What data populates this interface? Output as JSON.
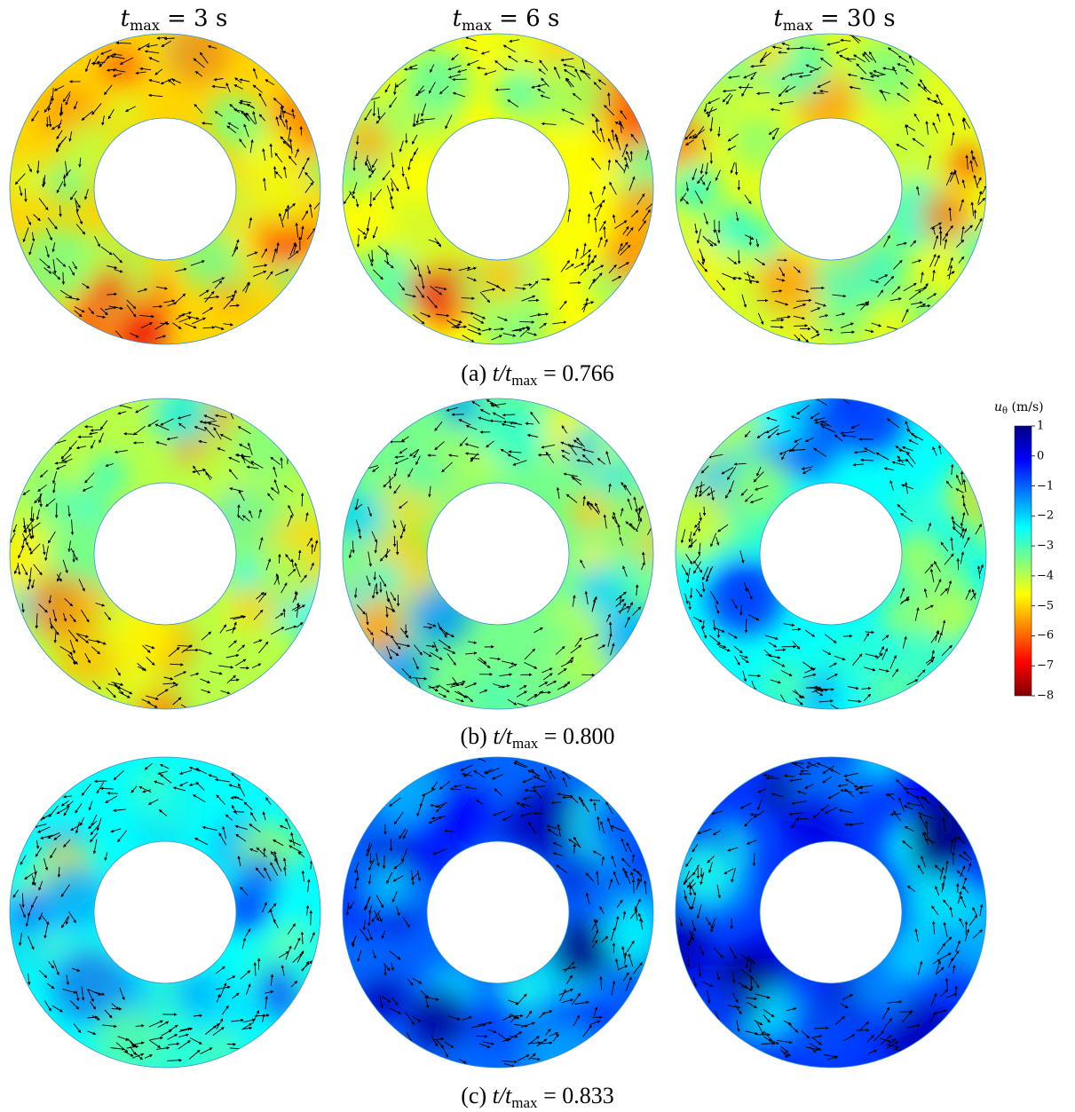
{
  "columns": [
    {
      "label": "t",
      "sub": "max",
      "value": "= 3 s"
    },
    {
      "label": "t",
      "sub": "max",
      "value": "= 6 s"
    },
    {
      "label": "t",
      "sub": "max",
      "value": "= 30 s"
    }
  ],
  "rows": [
    {
      "caption_prefix": "(a)",
      "ratio": "t/t",
      "sub": "max",
      "value": " = 0.766"
    },
    {
      "caption_prefix": "(b)",
      "ratio": "t/t",
      "sub": "max",
      "value": " = 0.800"
    },
    {
      "caption_prefix": "(c)",
      "ratio": "t/t",
      "sub": "max",
      "value": " = 0.833"
    }
  ],
  "colorbar": {
    "symbol": "u",
    "sub": "θ",
    "unit": "(m/s)",
    "ticks": [
      "1",
      "0",
      "−1",
      "−2",
      "−3",
      "−4",
      "−5",
      "−6",
      "−7",
      "−8"
    ],
    "min": -8,
    "max": 1,
    "colormap": "jet",
    "colors": [
      "#000080",
      "#0000ff",
      "#0080ff",
      "#00ffff",
      "#80ff80",
      "#ffff00",
      "#ff8000",
      "#ff0000",
      "#800000"
    ]
  },
  "panels_base_level": [
    [
      -5.0,
      -4.6,
      -4.4
    ],
    [
      -4.0,
      -3.4,
      -2.4
    ],
    [
      -2.4,
      -1.0,
      -0.6
    ]
  ]
}
